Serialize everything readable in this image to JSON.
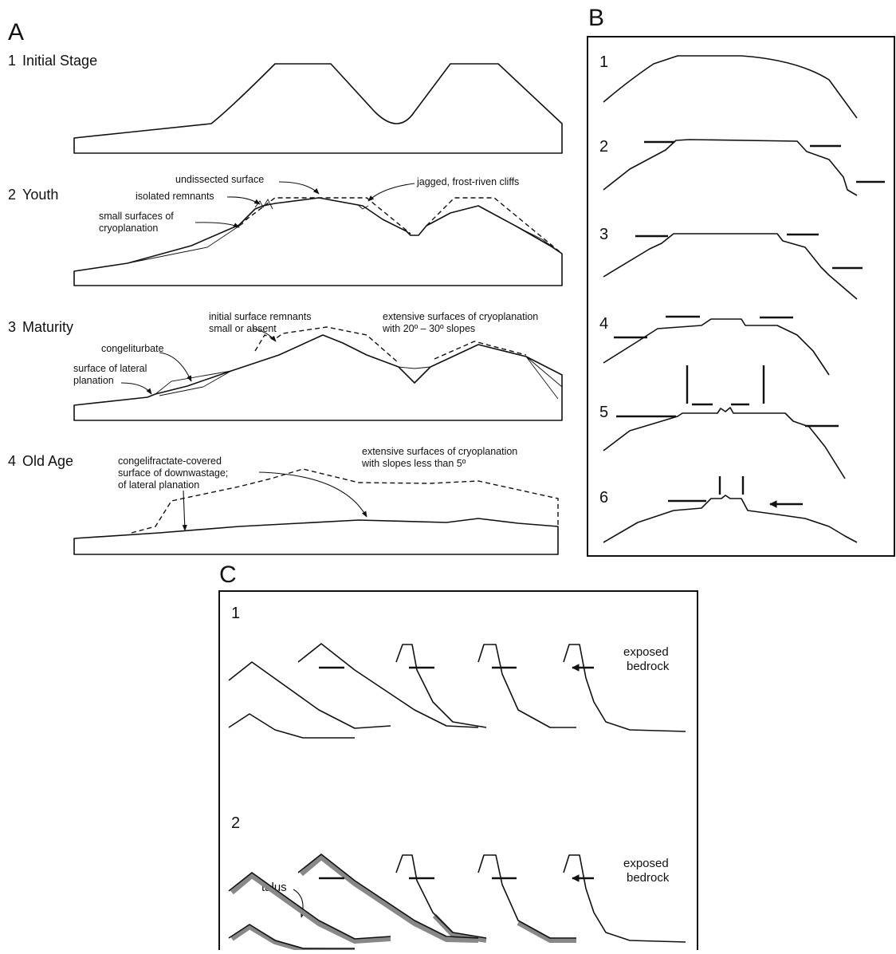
{
  "panel_a": {
    "label": "A",
    "stages": [
      {
        "number": "1",
        "name": "Initial Stage"
      },
      {
        "number": "2",
        "name": "Youth"
      },
      {
        "number": "3",
        "name": "Maturity"
      },
      {
        "number": "4",
        "name": "Old Age"
      }
    ],
    "annotations": [
      {
        "lines": [
          "undissected surface"
        ]
      },
      {
        "lines": [
          "isolated remnants"
        ]
      },
      {
        "lines": [
          "small surfaces of",
          "cryoplanation"
        ]
      },
      {
        "lines": [
          "jagged, frost-riven cliffs"
        ]
      },
      {
        "lines": [
          "initial surface remnants",
          "small or absent"
        ]
      },
      {
        "lines": [
          "extensive surfaces of cryoplanation",
          "with 20º – 30º slopes"
        ]
      },
      {
        "lines": [
          "congeliturbate"
        ]
      },
      {
        "lines": [
          "surface of lateral",
          "planation"
        ]
      },
      {
        "lines": [
          "congelifractate-covered",
          "surface of downwastage;",
          "of lateral planation"
        ]
      },
      {
        "lines": [
          "extensive surfaces of cryoplanation",
          "with slopes less than 5º"
        ]
      }
    ]
  },
  "panel_b": {
    "label": "B",
    "stages": [
      "1",
      "2",
      "3",
      "4",
      "5",
      "6"
    ]
  },
  "panel_c": {
    "label": "C",
    "rows": [
      {
        "label": "1",
        "note": [
          "exposed",
          "bedrock"
        ]
      },
      {
        "label": "2",
        "note": [
          "exposed",
          "bedrock"
        ],
        "talus": "talus"
      }
    ]
  }
}
